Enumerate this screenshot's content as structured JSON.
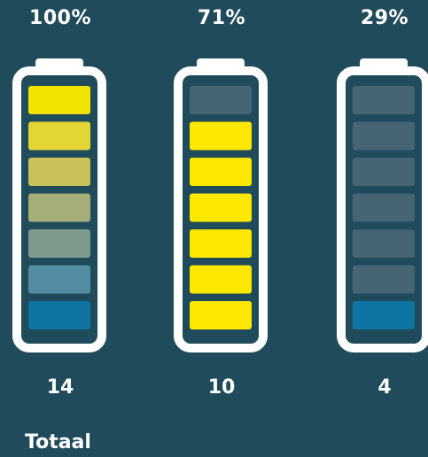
{
  "batteries": [
    {
      "percent_label": "100%",
      "count_label": "14",
      "segment_colors": [
        "#f2e400",
        "#e3d536",
        "#c9c25a",
        "#a6ad78",
        "#7e9a8c",
        "#548da3",
        "#0d74a4"
      ]
    },
    {
      "percent_label": "71%",
      "count_label": "10",
      "segment_colors": [
        "#466574",
        "#ffe800",
        "#ffe800",
        "#ffe800",
        "#ffe800",
        "#ffe800",
        "#ffe800"
      ]
    },
    {
      "percent_label": "29%",
      "count_label": "4",
      "segment_colors": [
        "#466574",
        "#466574",
        "#466574",
        "#466574",
        "#466574",
        "#466574",
        "#0d74a4"
      ]
    }
  ],
  "footer": {
    "total_label": "Totaal"
  },
  "colors": {
    "background": "#1f4b5b",
    "battery_outline": "#ffffff",
    "empty_segment": "#466574"
  }
}
